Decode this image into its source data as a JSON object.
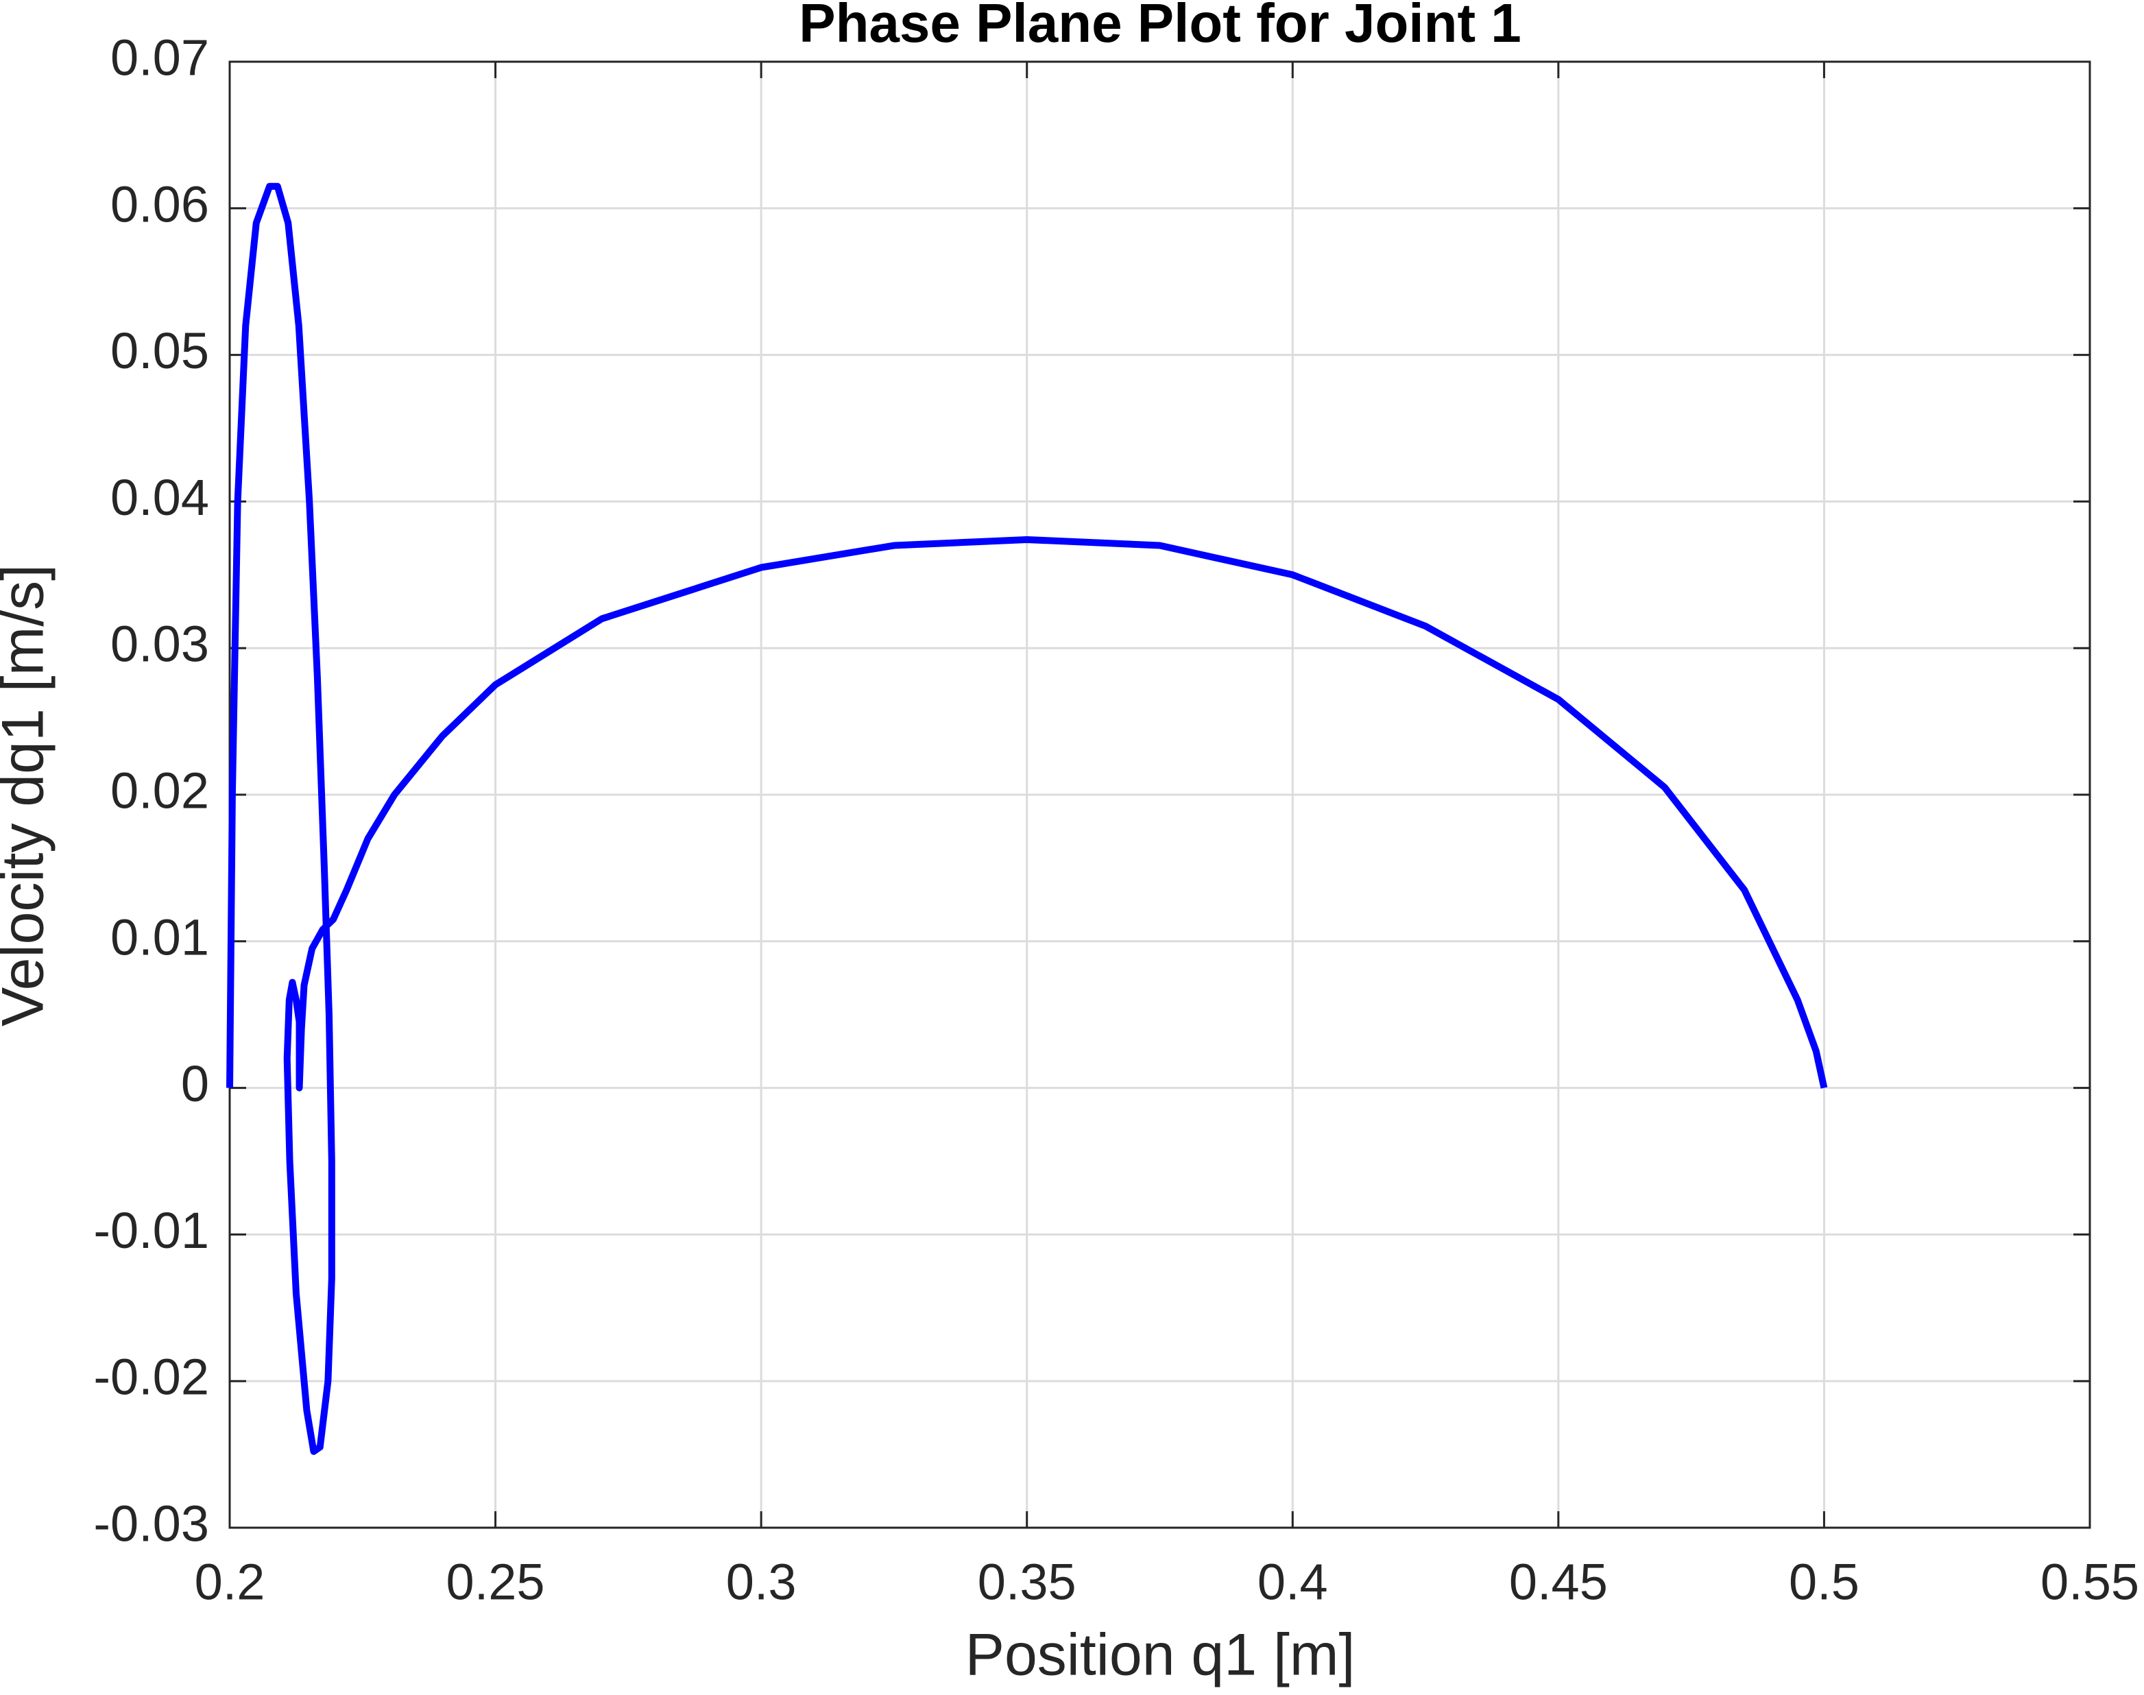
{
  "chart_data": {
    "type": "line",
    "title": "Phase Plane Plot for Joint 1",
    "x_label": "Position q1 [m]",
    "y_label": "Velocity dq1 [m/s]",
    "x": [
      0.2,
      0.2005,
      0.2015,
      0.203,
      0.205,
      0.2075,
      0.209,
      0.211,
      0.213,
      0.215,
      0.2165,
      0.2178,
      0.2187,
      0.2192,
      0.2192,
      0.2185,
      0.217,
      0.2158,
      0.2145,
      0.2125,
      0.2113,
      0.2108,
      0.2112,
      0.2118,
      0.2125,
      0.2131,
      0.2131,
      0.2135,
      0.214,
      0.2155,
      0.2175,
      0.2195,
      0.222,
      0.226,
      0.231,
      0.24,
      0.25,
      0.27,
      0.3,
      0.325,
      0.35,
      0.375,
      0.4,
      0.425,
      0.45,
      0.47,
      0.485,
      0.495,
      0.4985,
      0.5
    ],
    "series": [
      {
        "name": "dq1",
        "color": "#0000ff",
        "values": [
          0,
          0.02,
          0.04,
          0.052,
          0.059,
          0.0615,
          0.0615,
          0.059,
          0.052,
          0.04,
          0.028,
          0.015,
          0.005,
          -0.005,
          -0.013,
          -0.02,
          -0.0245,
          -0.0248,
          -0.022,
          -0.014,
          -0.005,
          0.002,
          0.006,
          0.0072,
          0.006,
          0.0045,
          0,
          0.004,
          0.007,
          0.0095,
          0.0108,
          0.0115,
          0.0135,
          0.017,
          0.02,
          0.024,
          0.0275,
          0.032,
          0.0355,
          0.037,
          0.0374,
          0.037,
          0.035,
          0.0315,
          0.0265,
          0.0205,
          0.0135,
          0.006,
          0.0025,
          0
        ]
      }
    ],
    "xlim": [
      0.2,
      0.55
    ],
    "xticks": [
      0.2,
      0.25,
      0.3,
      0.35,
      0.4,
      0.45,
      0.5,
      0.55
    ],
    "ylim": [
      -0.03,
      0.07
    ],
    "yticks": [
      -0.03,
      -0.02,
      -0.01,
      0,
      0.01,
      0.02,
      0.03,
      0.04,
      0.05,
      0.06,
      0.07
    ],
    "grid": true
  }
}
